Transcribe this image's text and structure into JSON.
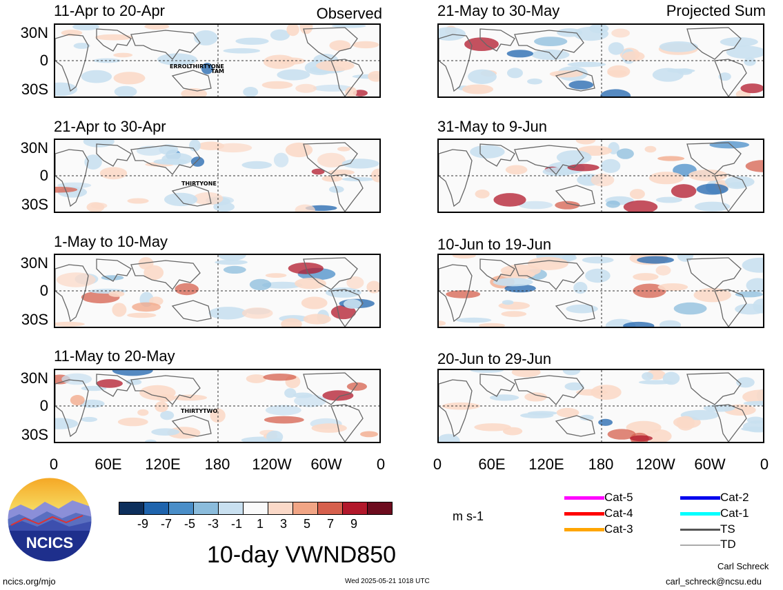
{
  "headers": {
    "left": "Observed",
    "right": "Projected Sum"
  },
  "observed_panels": [
    {
      "period": "11-Apr to 20-Apr",
      "storm_labels": [
        "ERROL",
        "THIRTYONE",
        "TAM"
      ]
    },
    {
      "period": "21-Apr to 30-Apr",
      "storm_labels": [
        "THIRTYONE"
      ]
    },
    {
      "period": "1-May to 10-May",
      "storm_labels": []
    },
    {
      "period": "11-May to 20-May",
      "storm_labels": [
        "THIRTYTWO"
      ]
    }
  ],
  "projected_panels": [
    {
      "period": "21-May to 30-May"
    },
    {
      "period": "31-May to 9-Jun"
    },
    {
      "period": "10-Jun to 19-Jun"
    },
    {
      "period": "20-Jun to 29-Jun"
    }
  ],
  "lat_labels": [
    "30N",
    "0",
    "30S"
  ],
  "lon_labels": [
    "0",
    "60E",
    "120E",
    "180",
    "120W",
    "60W",
    "0"
  ],
  "colorbar": {
    "ticks": [
      "-9",
      "-7",
      "-5",
      "-3",
      "-1",
      "1",
      "3",
      "5",
      "7",
      "9"
    ],
    "colors": [
      "#0d2f5c",
      "#1f64ad",
      "#4a8ec8",
      "#8bbcdc",
      "#c9e0f0",
      "#fafafa",
      "#fbd9c8",
      "#f1a585",
      "#d6604d",
      "#b2182b",
      "#6d0c1e"
    ],
    "units": "m s-1"
  },
  "title": "10-day VWND850",
  "legend": [
    {
      "label": "Cat-5",
      "color": "#ff00ff"
    },
    {
      "label": "Cat-4",
      "color": "#ff0000"
    },
    {
      "label": "Cat-3",
      "color": "#ffa500"
    },
    {
      "label": "Cat-2",
      "color": "#0000ee"
    },
    {
      "label": "Cat-1",
      "color": "#00ffff"
    },
    {
      "label": "TS",
      "color": "#555555"
    },
    {
      "label": "TD",
      "color": "#aaaaaa"
    }
  ],
  "logo": {
    "text": "NCICS"
  },
  "footer": {
    "site": "ncics.org/mjo",
    "timestamp": "Wed 2025-05-21 1018 UTC",
    "author": "Carl Schreck",
    "email": "carl_schreck@ncsu.edu"
  }
}
